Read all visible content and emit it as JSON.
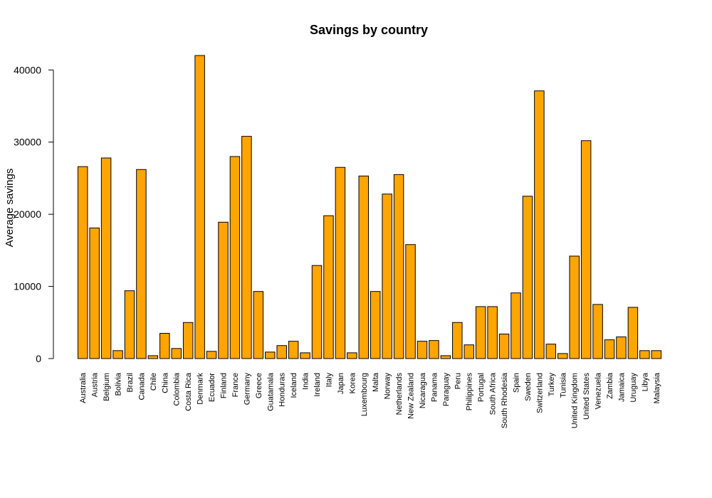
{
  "chart_data": {
    "type": "bar",
    "title": "Savings by country",
    "xlabel": "",
    "ylabel": "Average savings",
    "ylim": [
      0,
      42200
    ],
    "yticks": [
      0,
      10000,
      20000,
      30000,
      40000
    ],
    "bar_color": "#FFA500",
    "border_color": "#000000",
    "categories": [
      "Australia",
      "Austria",
      "Belgium",
      "Bolivia",
      "Brazil",
      "Canada",
      "Chile",
      "China",
      "Colombia",
      "Costa Rica",
      "Denmark",
      "Ecuador",
      "Finland",
      "France",
      "Germany",
      "Greece",
      "Guatamala",
      "Honduras",
      "Iceland",
      "India",
      "Ireland",
      "Italy",
      "Japan",
      "Korea",
      "Luxembourg",
      "Malta",
      "Norway",
      "Netherlands",
      "New Zealand",
      "Nicaragua",
      "Panama",
      "Paraguay",
      "Peru",
      "Philippines",
      "Portugal",
      "South Africa",
      "South Rhodesia",
      "Spain",
      "Sweden",
      "Switzerland",
      "Turkey",
      "Tunisia",
      "United Kingdom",
      "United States",
      "Venezuela",
      "Zambia",
      "Jamaica",
      "Uruguay",
      "Libya",
      "Malaysia"
    ],
    "values": [
      26600,
      18100,
      27800,
      1100,
      9400,
      26200,
      400,
      3500,
      1400,
      5000,
      42000,
      1000,
      18900,
      28000,
      30800,
      9300,
      900,
      1800,
      2400,
      800,
      12900,
      19800,
      26500,
      800,
      25300,
      9300,
      22800,
      25500,
      15800,
      2400,
      2500,
      400,
      5000,
      1900,
      7200,
      7200,
      3400,
      9100,
      22500,
      37100,
      2000,
      700,
      14200,
      30200,
      7500,
      2600,
      3000,
      7100,
      1100,
      1100
    ]
  }
}
